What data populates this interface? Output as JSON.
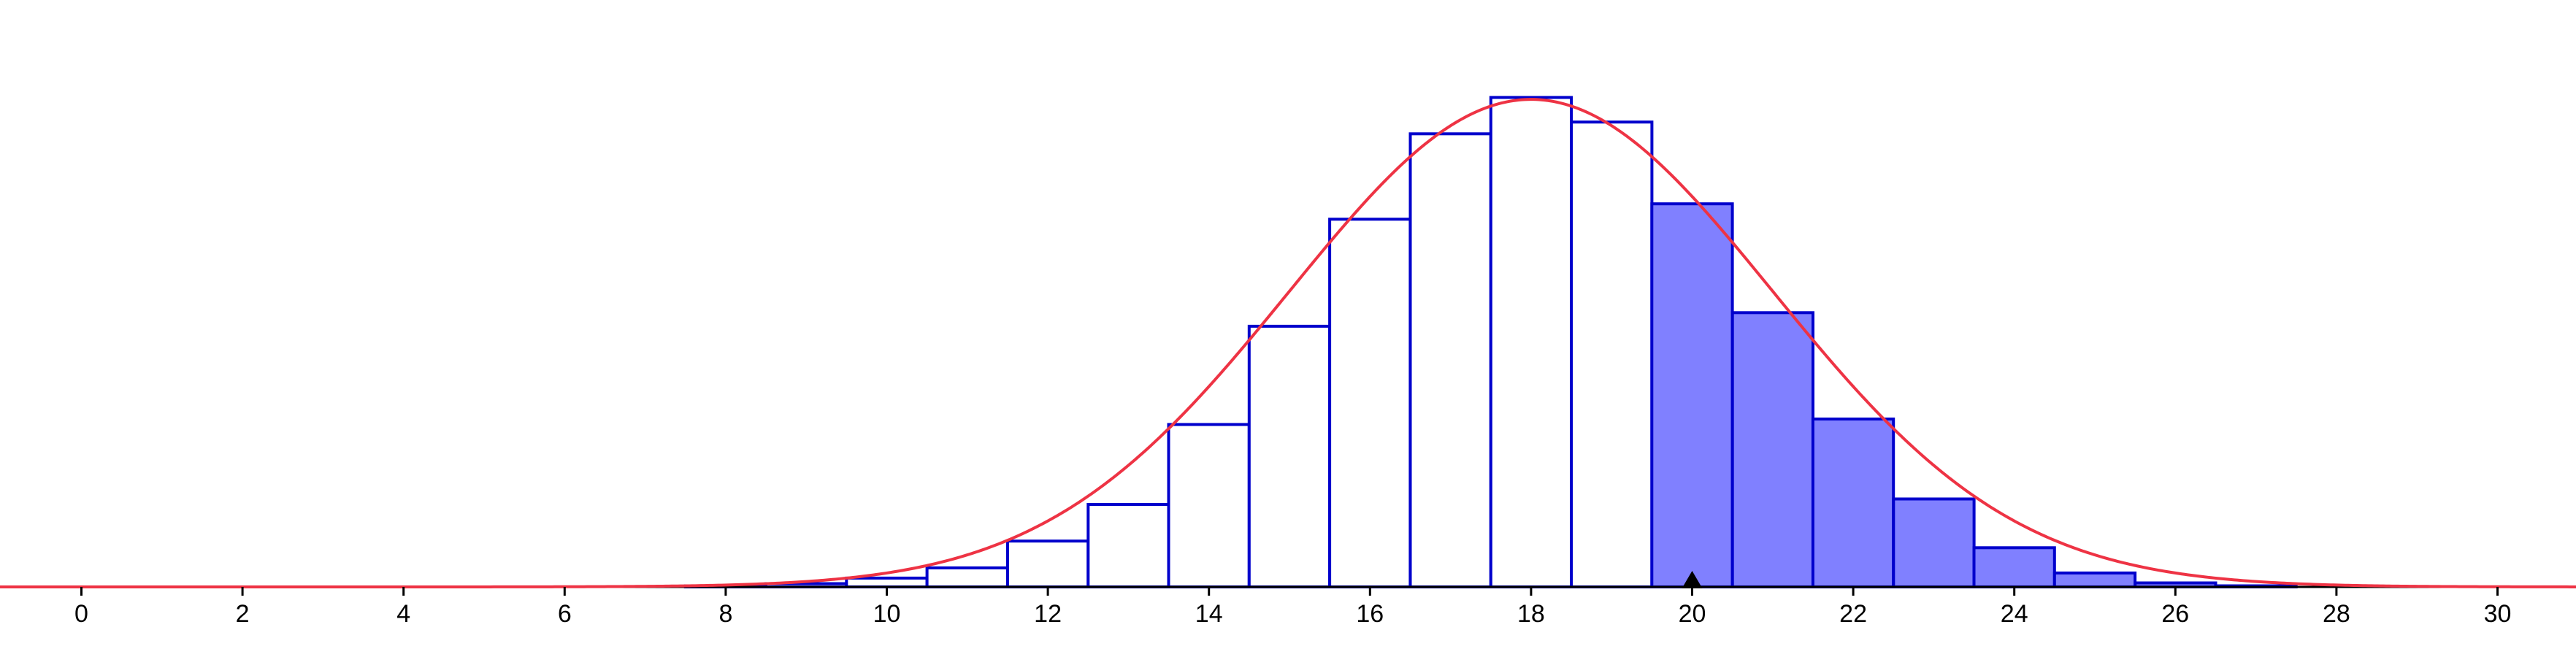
{
  "chart_data": {
    "type": "bar",
    "subtype": "histogram-with-normal-curve",
    "x_ticks": [
      0,
      2,
      4,
      6,
      8,
      10,
      12,
      14,
      16,
      18,
      20,
      22,
      24,
      26,
      28,
      30
    ],
    "xlim": [
      -1,
      31
    ],
    "ylim": [
      0,
      0.135
    ],
    "grid": false,
    "legend": "none",
    "bars": {
      "x": [
        8,
        9,
        10,
        11,
        12,
        13,
        14,
        15,
        16,
        17,
        18,
        19,
        20,
        21,
        22,
        23,
        24,
        25,
        26,
        27
      ],
      "values": [
        0.0003,
        0.0009,
        0.0024,
        0.0052,
        0.0125,
        0.0225,
        0.0443,
        0.0711,
        0.1003,
        0.1236,
        0.1335,
        0.1268,
        0.1045,
        0.0748,
        0.0458,
        0.024,
        0.0107,
        0.0038,
        0.0011,
        0.0003
      ],
      "highlighted_from": 20
    },
    "curve": {
      "type": "normal-pdf",
      "mean": 18,
      "sd": 3
    },
    "marker_x": 20,
    "colors": {
      "bar_stroke": "#0000CC",
      "highlight_fill": "#8080FF",
      "curve": "#EE3344",
      "axis": "#000000",
      "marker": "#000000"
    }
  }
}
